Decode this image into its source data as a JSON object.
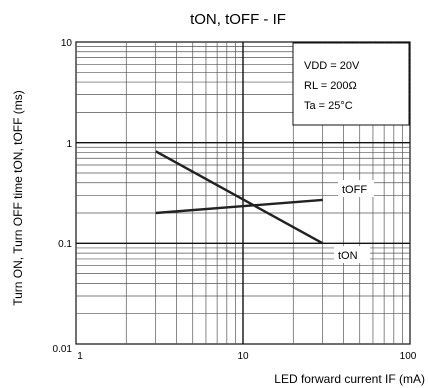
{
  "chart_data": {
    "type": "line",
    "title": "tON, tOFF - IF",
    "xlabel": "LED forward current IF (mA)",
    "ylabel": "Turn ON, Turn OFF time tON, tOFF (ms)",
    "xscale": "log",
    "yscale": "log",
    "xlim": [
      1,
      100
    ],
    "ylim": [
      0.01,
      10
    ],
    "x_ticks": [
      "1",
      "10",
      "100"
    ],
    "y_ticks": [
      "10",
      "1",
      "0.1",
      "0.01"
    ],
    "grid": true,
    "conditions": [
      "VDD = 20V",
      "RL = 200Ω",
      "Ta = 25°C"
    ],
    "conditions_position": "top-right",
    "series": [
      {
        "name": "tOFF",
        "x": [
          3,
          30
        ],
        "y": [
          0.2,
          0.27
        ],
        "color": "#222222"
      },
      {
        "name": "tON",
        "x": [
          3,
          30
        ],
        "y": [
          0.82,
          0.1
        ],
        "color": "#222222"
      }
    ]
  }
}
